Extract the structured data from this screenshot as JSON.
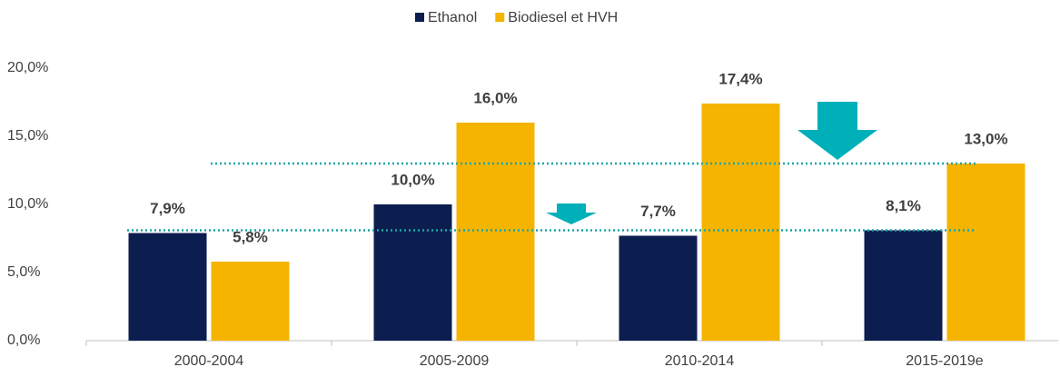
{
  "chart_data": {
    "type": "bar",
    "categories": [
      "2000-2004",
      "2005-2009",
      "2010-2014",
      "2015-2019e"
    ],
    "series": [
      {
        "name": "Ethanol",
        "color": "#0c1e50",
        "values": [
          7.9,
          10.0,
          7.7,
          8.1
        ],
        "value_labels": [
          "7,9%",
          "10,0%",
          "7,7%",
          "8,1%"
        ]
      },
      {
        "name": "Biodiesel et HVH",
        "color": "#f5b400",
        "values": [
          5.8,
          16.0,
          17.4,
          13.0
        ],
        "value_labels": [
          "5,8%",
          "16,0%",
          "17,4%",
          "13,0%"
        ]
      }
    ],
    "ylim": [
      0,
      20
    ],
    "yticks": [
      {
        "value": 0,
        "label": "0,0%"
      },
      {
        "value": 5,
        "label": "5,0%"
      },
      {
        "value": 10,
        "label": "10,0%"
      },
      {
        "value": 15,
        "label": "15,0%"
      },
      {
        "value": 20,
        "label": "20,0%"
      }
    ],
    "grid": false,
    "legend": "top"
  }
}
